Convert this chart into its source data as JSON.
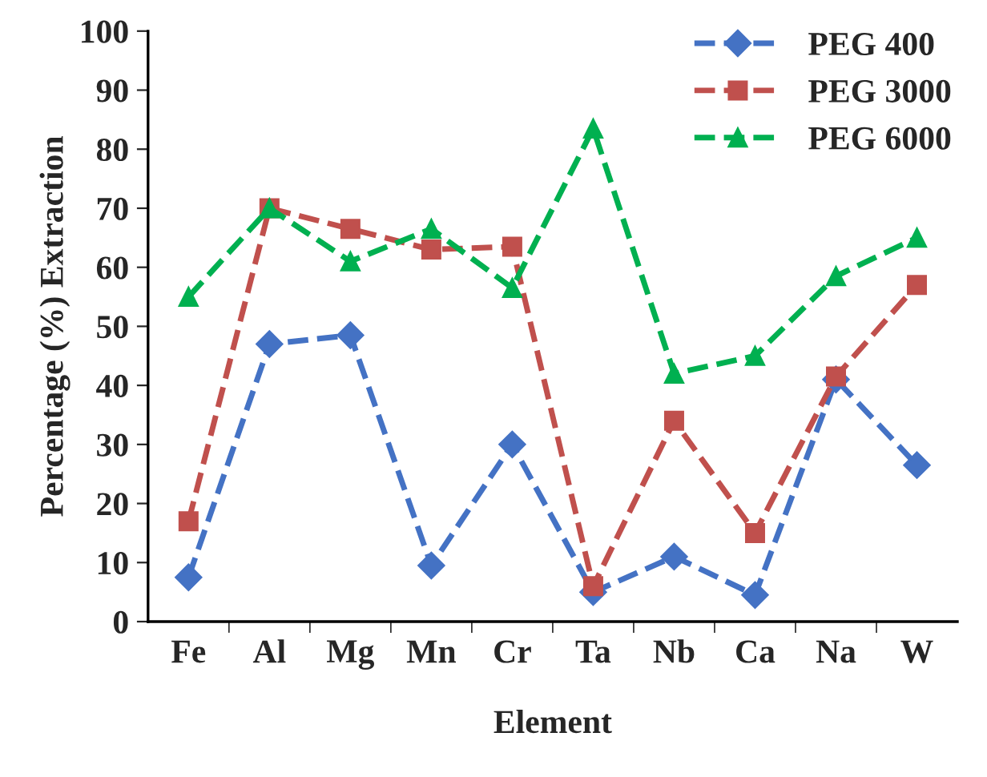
{
  "chart_data": {
    "type": "line",
    "xlabel": "Element",
    "ylabel": "Percentage (%) Extraction",
    "categories": [
      "Fe",
      "Al",
      "Mg",
      "Mn",
      "Cr",
      "Ta",
      "Nb",
      "Ca",
      "Na",
      "W"
    ],
    "series": [
      {
        "name": "PEG 400",
        "color": "#4472c4",
        "marker": "diamond",
        "values": [
          7.5,
          47,
          48.5,
          9.5,
          30,
          5,
          11,
          4.5,
          41,
          26.5
        ]
      },
      {
        "name": "PEG 3000",
        "color": "#c0504d",
        "marker": "square",
        "values": [
          17,
          70,
          66.5,
          63,
          63.5,
          6,
          34,
          15,
          41.5,
          57
        ]
      },
      {
        "name": "PEG 6000",
        "color": "#00b050",
        "marker": "triangle",
        "values": [
          55,
          70,
          61,
          66.5,
          56.5,
          83.5,
          42,
          45,
          58.5,
          65
        ]
      }
    ],
    "ylim": [
      0,
      100
    ],
    "yticks": [
      0,
      10,
      20,
      30,
      40,
      50,
      60,
      70,
      80,
      90,
      100
    ],
    "line_style": "dashed",
    "grid": false,
    "legend": "top right"
  }
}
